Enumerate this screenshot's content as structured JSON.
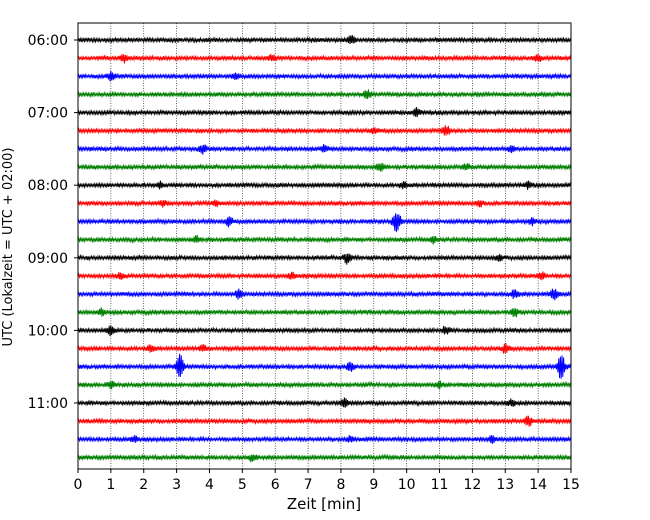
{
  "chart_data": {
    "type": "line",
    "subtype": "helicorder",
    "xlabel": "Zeit  [min]",
    "ylabel": "UTC (Lokalzeit = UTC + 02:00)",
    "xlim": [
      0,
      15
    ],
    "x_ticks": [
      0,
      1,
      2,
      3,
      4,
      5,
      6,
      7,
      8,
      9,
      10,
      11,
      12,
      13,
      14,
      15
    ],
    "vertical_grid": true,
    "grid_style": "dotted",
    "traces_per_hour": 4,
    "trace_colors": [
      "#000000",
      "#ff0000",
      "#0000ff",
      "#008000"
    ],
    "y_tick_labels": [
      "06:00",
      "07:00",
      "08:00",
      "09:00",
      "10:00",
      "11:00"
    ],
    "traces": [
      {
        "start": "06:00",
        "color": "#000000",
        "events": [
          {
            "minute": 8.3,
            "amp": 4
          }
        ]
      },
      {
        "start": "06:15",
        "color": "#ff0000",
        "events": [
          {
            "minute": 1.4,
            "amp": 4
          },
          {
            "minute": 5.9,
            "amp": 3
          },
          {
            "minute": 14.0,
            "amp": 3
          }
        ]
      },
      {
        "start": "06:30",
        "color": "#0000ff",
        "events": [
          {
            "minute": 1.0,
            "amp": 4
          },
          {
            "minute": 4.8,
            "amp": 3
          }
        ]
      },
      {
        "start": "06:45",
        "color": "#008000",
        "events": [
          {
            "minute": 8.8,
            "amp": 4
          }
        ]
      },
      {
        "start": "07:00",
        "color": "#000000",
        "events": [
          {
            "minute": 10.3,
            "amp": 4
          }
        ]
      },
      {
        "start": "07:15",
        "color": "#ff0000",
        "events": [
          {
            "minute": 9.0,
            "amp": 3
          },
          {
            "minute": 11.2,
            "amp": 5
          }
        ]
      },
      {
        "start": "07:30",
        "color": "#0000ff",
        "events": [
          {
            "minute": 3.8,
            "amp": 4
          },
          {
            "minute": 7.5,
            "amp": 3
          },
          {
            "minute": 13.2,
            "amp": 3
          }
        ]
      },
      {
        "start": "07:45",
        "color": "#008000",
        "events": [
          {
            "minute": 9.2,
            "amp": 4
          },
          {
            "minute": 11.8,
            "amp": 3
          }
        ]
      },
      {
        "start": "08:00",
        "color": "#000000",
        "events": [
          {
            "minute": 2.5,
            "amp": 3
          },
          {
            "minute": 9.9,
            "amp": 3
          },
          {
            "minute": 13.7,
            "amp": 3
          }
        ]
      },
      {
        "start": "08:15",
        "color": "#ff0000",
        "events": [
          {
            "minute": 2.6,
            "amp": 3
          },
          {
            "minute": 4.2,
            "amp": 3
          },
          {
            "minute": 12.2,
            "amp": 3
          }
        ]
      },
      {
        "start": "08:30",
        "color": "#0000ff",
        "events": [
          {
            "minute": 4.6,
            "amp": 4
          },
          {
            "minute": 9.7,
            "amp": 11
          },
          {
            "minute": 13.8,
            "amp": 3
          }
        ]
      },
      {
        "start": "08:45",
        "color": "#008000",
        "events": [
          {
            "minute": 3.6,
            "amp": 3
          },
          {
            "minute": 10.8,
            "amp": 3
          }
        ]
      },
      {
        "start": "09:00",
        "color": "#000000",
        "events": [
          {
            "minute": 8.2,
            "amp": 5
          },
          {
            "minute": 12.8,
            "amp": 3
          }
        ]
      },
      {
        "start": "09:15",
        "color": "#ff0000",
        "events": [
          {
            "minute": 1.3,
            "amp": 3
          },
          {
            "minute": 6.5,
            "amp": 3
          },
          {
            "minute": 14.1,
            "amp": 3
          }
        ]
      },
      {
        "start": "09:30",
        "color": "#0000ff",
        "events": [
          {
            "minute": 4.9,
            "amp": 4
          },
          {
            "minute": 13.3,
            "amp": 4
          },
          {
            "minute": 14.5,
            "amp": 5
          }
        ]
      },
      {
        "start": "09:45",
        "color": "#008000",
        "events": [
          {
            "minute": 0.7,
            "amp": 3
          },
          {
            "minute": 13.3,
            "amp": 4
          }
        ]
      },
      {
        "start": "10:00",
        "color": "#000000",
        "events": [
          {
            "minute": 1.0,
            "amp": 5
          },
          {
            "minute": 11.2,
            "amp": 4
          }
        ]
      },
      {
        "start": "10:15",
        "color": "#ff0000",
        "events": [
          {
            "minute": 2.2,
            "amp": 3
          },
          {
            "minute": 3.8,
            "amp": 3
          },
          {
            "minute": 13.0,
            "amp": 4
          }
        ]
      },
      {
        "start": "10:30",
        "color": "#0000ff",
        "events": [
          {
            "minute": 3.1,
            "amp": 11
          },
          {
            "minute": 8.3,
            "amp": 4
          },
          {
            "minute": 14.7,
            "amp": 14
          }
        ]
      },
      {
        "start": "10:45",
        "color": "#008000",
        "events": [
          {
            "minute": 1.0,
            "amp": 3
          },
          {
            "minute": 11.0,
            "amp": 3
          }
        ]
      },
      {
        "start": "11:00",
        "color": "#000000",
        "events": [
          {
            "minute": 8.1,
            "amp": 5
          },
          {
            "minute": 13.2,
            "amp": 3
          }
        ]
      },
      {
        "start": "11:15",
        "color": "#ff0000",
        "events": [
          {
            "minute": 13.7,
            "amp": 5
          }
        ]
      },
      {
        "start": "11:30",
        "color": "#0000ff",
        "events": [
          {
            "minute": 1.7,
            "amp": 3
          },
          {
            "minute": 8.3,
            "amp": 3
          },
          {
            "minute": 12.6,
            "amp": 3
          }
        ]
      },
      {
        "start": "11:45",
        "color": "#008000",
        "events": [
          {
            "minute": 5.3,
            "amp": 3
          }
        ]
      }
    ]
  }
}
